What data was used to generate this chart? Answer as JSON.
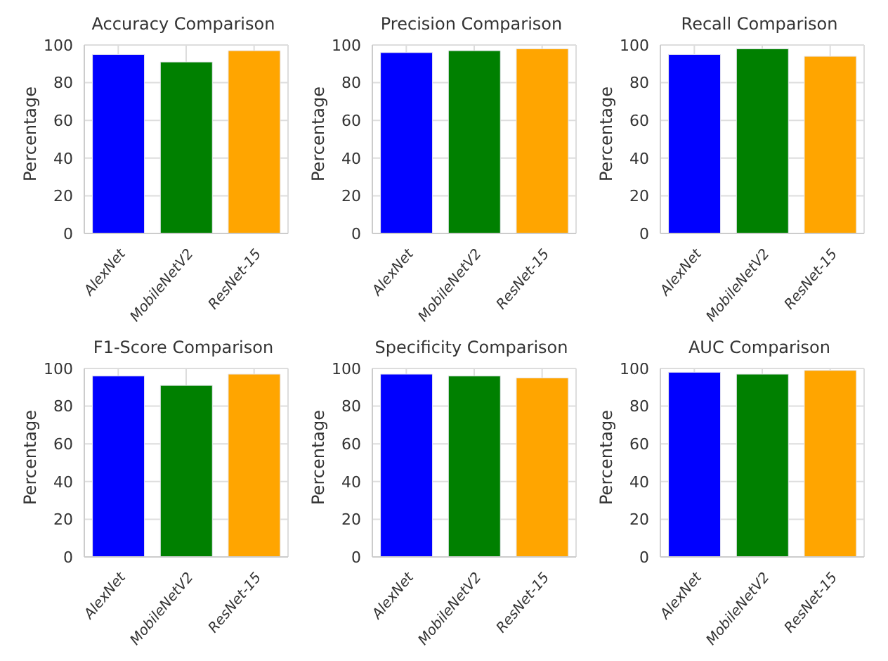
{
  "chart_data": [
    {
      "type": "bar",
      "title": "Accuracy Comparison",
      "ylabel": "Percentage",
      "categories": [
        "AlexNet",
        "MobileNetV2",
        "ResNet-15"
      ],
      "values": [
        95,
        91,
        97
      ],
      "colors": [
        "#0000ff",
        "#008000",
        "#ffa500"
      ],
      "ylim": [
        0,
        100
      ],
      "yticks": [
        0,
        20,
        40,
        60,
        80,
        100
      ],
      "grid": true
    },
    {
      "type": "bar",
      "title": "Precision Comparison",
      "ylabel": "Percentage",
      "categories": [
        "AlexNet",
        "MobileNetV2",
        "ResNet-15"
      ],
      "values": [
        96,
        97,
        98
      ],
      "colors": [
        "#0000ff",
        "#008000",
        "#ffa500"
      ],
      "ylim": [
        0,
        100
      ],
      "yticks": [
        0,
        20,
        40,
        60,
        80,
        100
      ],
      "grid": true
    },
    {
      "type": "bar",
      "title": "Recall Comparison",
      "ylabel": "Percentage",
      "categories": [
        "AlexNet",
        "MobileNetV2",
        "ResNet-15"
      ],
      "values": [
        95,
        98,
        94
      ],
      "colors": [
        "#0000ff",
        "#008000",
        "#ffa500"
      ],
      "ylim": [
        0,
        100
      ],
      "yticks": [
        0,
        20,
        40,
        60,
        80,
        100
      ],
      "grid": true
    },
    {
      "type": "bar",
      "title": "F1-Score Comparison",
      "ylabel": "Percentage",
      "categories": [
        "AlexNet",
        "MobileNetV2",
        "ResNet-15"
      ],
      "values": [
        96,
        91,
        97
      ],
      "colors": [
        "#0000ff",
        "#008000",
        "#ffa500"
      ],
      "ylim": [
        0,
        100
      ],
      "yticks": [
        0,
        20,
        40,
        60,
        80,
        100
      ],
      "grid": true
    },
    {
      "type": "bar",
      "title": "Specificity Comparison",
      "ylabel": "Percentage",
      "categories": [
        "AlexNet",
        "MobileNetV2",
        "ResNet-15"
      ],
      "values": [
        97,
        96,
        95
      ],
      "colors": [
        "#0000ff",
        "#008000",
        "#ffa500"
      ],
      "ylim": [
        0,
        100
      ],
      "yticks": [
        0,
        20,
        40,
        60,
        80,
        100
      ],
      "grid": true
    },
    {
      "type": "bar",
      "title": "AUC Comparison",
      "ylabel": "Percentage",
      "categories": [
        "AlexNet",
        "MobileNetV2",
        "ResNet-15"
      ],
      "values": [
        98,
        97,
        99
      ],
      "colors": [
        "#0000ff",
        "#008000",
        "#ffa500"
      ],
      "ylim": [
        0,
        100
      ],
      "yticks": [
        0,
        20,
        40,
        60,
        80,
        100
      ],
      "grid": true
    }
  ]
}
